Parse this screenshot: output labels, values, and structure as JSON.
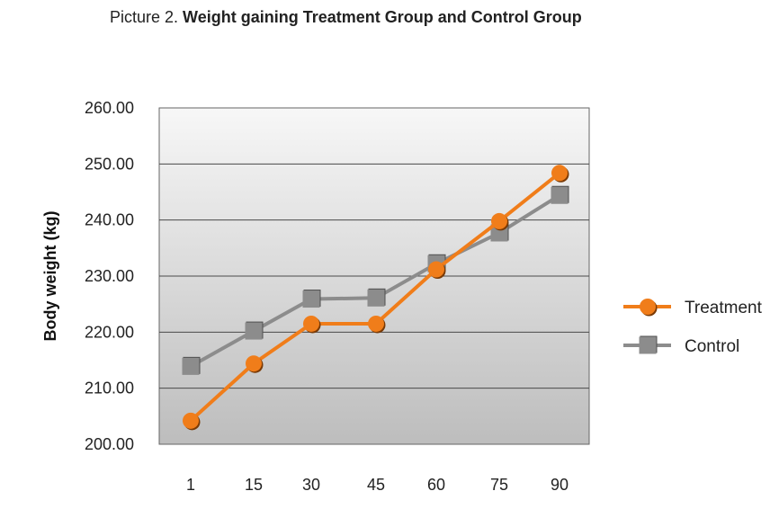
{
  "title": {
    "prefix": "Picture 2. ",
    "main": "Weight gaining Treatment Group and Control Group"
  },
  "chart_data": {
    "type": "line",
    "title": "Picture 2. Weight gaining Treatment Group and Control Group",
    "xlabel": "",
    "ylabel": "Body weight (kg)",
    "categories": [
      "1",
      "15",
      "30",
      "45",
      "60",
      "75",
      "90"
    ],
    "ylim": [
      200,
      260
    ],
    "yticks": [
      "200.00",
      "210.00",
      "220.00",
      "230.00",
      "240.00",
      "250.00",
      "260.00"
    ],
    "grid": true,
    "legend_position": "right",
    "series": [
      {
        "name": "Treatment",
        "values": [
          204.2,
          214.4,
          221.5,
          221.5,
          231.2,
          239.8,
          248.4
        ],
        "color": "#F07D1A",
        "marker": "circle"
      },
      {
        "name": "Control",
        "values": [
          213.9,
          220.2,
          225.9,
          226.1,
          232.2,
          237.7,
          244.4
        ],
        "color": "#8C8C8C",
        "marker": "square"
      }
    ]
  }
}
